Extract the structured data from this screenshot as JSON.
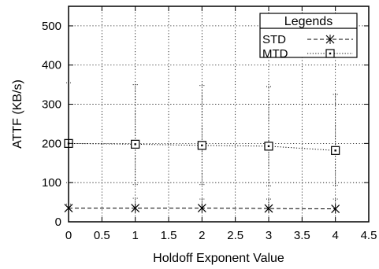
{
  "chart_data": {
    "type": "line",
    "title": "",
    "xlabel": "Holdoff Exponent Value",
    "ylabel": "ATTF (KB/s)",
    "xlim": [
      0,
      4.5
    ],
    "ylim": [
      0,
      550
    ],
    "x_ticks": [
      "0",
      "0.5",
      "1",
      "1.5",
      "2",
      "2.5",
      "3",
      "3.5",
      "4",
      "4.5"
    ],
    "x_tick_values": [
      0,
      0.5,
      1,
      1.5,
      2,
      2.5,
      3,
      3.5,
      4,
      4.5
    ],
    "y_ticks": [
      "0",
      "100",
      "200",
      "300",
      "400",
      "500"
    ],
    "y_tick_values": [
      0,
      100,
      200,
      300,
      400,
      500
    ],
    "grid": true,
    "legend": {
      "title": "Legends",
      "placement": "top-right"
    },
    "series": [
      {
        "name": "STD",
        "marker": "x",
        "line_style": "dashed",
        "x": [
          0,
          1,
          2,
          3,
          4
        ],
        "y": [
          35,
          35,
          35,
          34,
          33
        ],
        "err_high": [
          45,
          60,
          58,
          58,
          58
        ]
      },
      {
        "name": "MTD",
        "marker": "boxed-dot",
        "line_style": "dotted",
        "x": [
          0,
          1,
          2,
          3,
          4
        ],
        "y": [
          200,
          198,
          195,
          193,
          182
        ],
        "err_low": [
          100,
          95,
          95,
          92,
          93
        ],
        "err_high": [
          355,
          350,
          348,
          345,
          325
        ]
      }
    ]
  }
}
